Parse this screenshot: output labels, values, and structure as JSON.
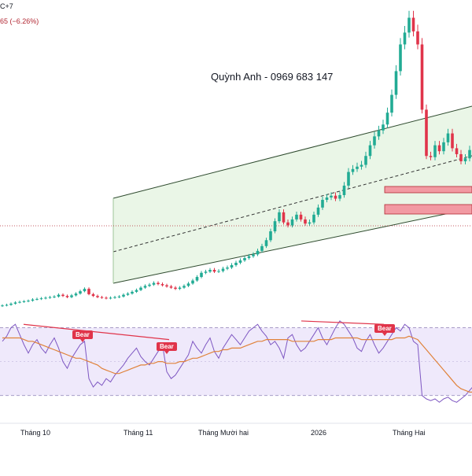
{
  "header": {
    "symbol_fragment": "C+7",
    "change_fragment": "65 (−6.26%)"
  },
  "watermark": "Quỳnh Anh - 0969 683 147",
  "x_axis_labels": [
    "Tháng 10",
    "Tháng 11",
    "Tháng Mười hai",
    "2026",
    "Tháng Hai"
  ],
  "annotations": {
    "bear_labels": [
      "Bear",
      "Bear",
      "Bear"
    ]
  },
  "colors": {
    "up": "#22ab94",
    "down": "#e0344a",
    "channel_fill": "#e8f5e4",
    "channel_line": "#2e4a2e",
    "rsi_line": "#7e57c2",
    "rsi_ma": "#e0823a",
    "rsi_band": "#efe9fb",
    "zone_fill": "#f29aa3",
    "divergence": "#e0344a"
  },
  "chart_data": [
    {
      "type": "candlestick",
      "title": "",
      "x_categories": [
        "Tháng 10",
        "Tháng 11",
        "Tháng Mười hai",
        "2026",
        "Tháng Hai"
      ],
      "price_scale_visible": false,
      "overlays": [
        "ascending regression channel with dashed midline",
        "two red horizontal resistance zones",
        "dotted horizontal reference line"
      ],
      "series": [
        {
          "name": "",
          "closes": [
            1.0,
            1.01,
            1.03,
            1.05,
            1.06,
            1.07,
            1.08,
            1.1,
            1.11,
            1.12,
            1.13,
            1.14,
            1.15,
            1.18,
            1.16,
            1.14,
            1.17,
            1.2,
            1.24,
            1.28,
            1.19,
            1.16,
            1.14,
            1.13,
            1.12,
            1.13,
            1.14,
            1.15,
            1.18,
            1.2,
            1.23,
            1.26,
            1.3,
            1.33,
            1.35,
            1.38,
            1.36,
            1.34,
            1.32,
            1.3,
            1.28,
            1.3,
            1.33,
            1.37,
            1.42,
            1.48,
            1.55,
            1.57,
            1.6,
            1.57,
            1.58,
            1.62,
            1.64,
            1.68,
            1.72,
            1.76,
            1.8,
            1.83,
            1.86,
            1.92,
            2.0,
            2.1,
            2.25,
            2.42,
            2.57,
            2.4,
            2.35,
            2.45,
            2.53,
            2.45,
            2.38,
            2.4,
            2.53,
            2.65,
            2.78,
            2.82,
            2.85,
            2.8,
            2.86,
            3.02,
            3.25,
            3.3,
            3.34,
            3.37,
            3.52,
            3.7,
            3.85,
            3.95,
            4.05,
            4.25,
            4.55,
            4.95,
            5.4,
            5.6,
            5.85,
            5.62,
            5.4,
            4.3,
            3.52,
            3.5,
            3.7,
            3.6,
            3.75,
            3.9,
            3.65,
            3.55,
            3.43,
            3.48,
            3.62,
            3.7,
            3.9
          ]
        }
      ],
      "zones": [
        "upper zone",
        "lower zone"
      ]
    },
    {
      "type": "line",
      "title": "",
      "series": [
        {
          "name": "",
          "values": [
            62,
            65,
            70,
            72,
            66,
            60,
            55,
            60,
            63,
            58,
            55,
            60,
            64,
            58,
            50,
            46,
            52,
            56,
            60,
            62,
            40,
            35,
            38,
            36,
            40,
            38,
            42,
            45,
            48,
            52,
            55,
            58,
            53,
            50,
            48,
            52,
            56,
            60,
            44,
            40,
            42,
            46,
            50,
            54,
            62,
            58,
            55,
            60,
            64,
            56,
            52,
            58,
            62,
            66,
            63,
            60,
            64,
            68,
            70,
            72,
            68,
            65,
            60,
            62,
            58,
            52,
            64,
            66,
            60,
            56,
            58,
            62,
            66,
            70,
            64,
            60,
            65,
            70,
            74,
            72,
            68,
            64,
            58,
            56,
            62,
            66,
            60,
            55,
            58,
            62,
            66,
            70,
            68,
            72,
            70,
            62,
            60,
            30,
            28,
            27,
            28,
            26,
            28,
            29,
            27,
            26,
            28,
            30,
            33,
            36,
            38
          ]
        },
        {
          "name": "",
          "values": [
            64,
            64,
            64,
            64,
            64,
            63,
            62,
            62,
            61,
            60,
            59,
            58,
            57,
            56,
            55,
            54,
            53,
            52,
            52,
            51,
            50,
            49,
            48,
            46,
            45,
            44,
            43,
            43,
            44,
            45,
            46,
            47,
            48,
            48,
            49,
            49,
            50,
            50,
            49,
            49,
            49,
            50,
            50,
            51,
            52,
            52,
            53,
            54,
            55,
            56,
            56,
            57,
            57,
            58,
            58,
            58,
            59,
            60,
            61,
            62,
            62,
            63,
            63,
            63,
            63,
            63,
            63,
            62,
            62,
            62,
            62,
            62,
            62,
            63,
            63,
            63,
            63,
            64,
            64,
            64,
            64,
            64,
            64,
            63,
            63,
            63,
            63,
            63,
            63,
            63,
            63,
            64,
            64,
            64,
            65,
            64,
            63,
            60,
            57,
            54,
            51,
            48,
            45,
            42,
            39,
            36,
            34,
            33,
            32,
            32,
            33
          ]
        }
      ]
    }
  ]
}
